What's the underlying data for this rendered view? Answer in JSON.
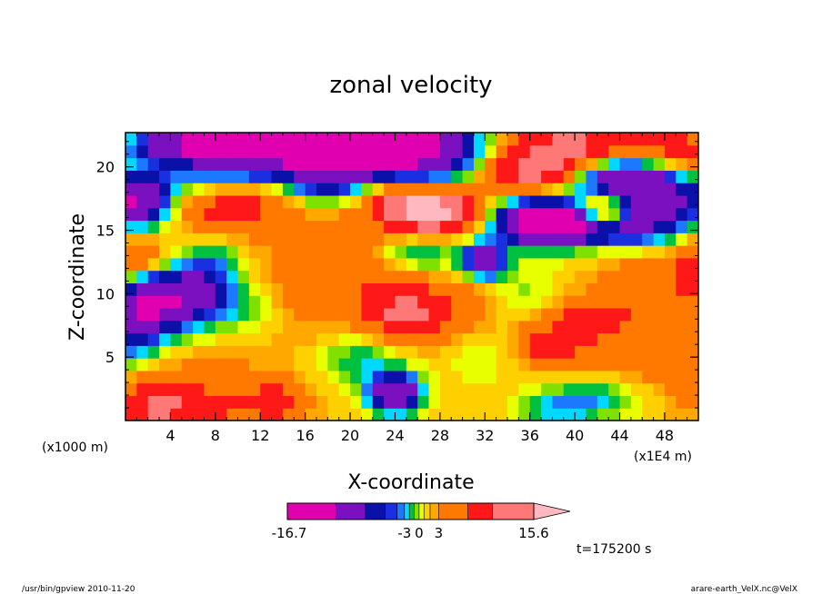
{
  "chart_data": {
    "type": "heatmap",
    "title": "zonal velocity",
    "xlabel": "X-coordinate",
    "ylabel": "Z-coordinate",
    "x_unit_left": "(x1000 m)",
    "x_unit_right": "(x1E4 m)",
    "x_ticks": [
      "4",
      "8",
      "12",
      "16",
      "20",
      "24",
      "28",
      "32",
      "36",
      "40",
      "44",
      "48"
    ],
    "x_tick_values": [
      4,
      8,
      12,
      16,
      20,
      24,
      28,
      32,
      36,
      40,
      44,
      48
    ],
    "xlim": [
      0,
      51
    ],
    "y_ticks": [
      "5",
      "10",
      "15",
      "20"
    ],
    "y_tick_values": [
      5,
      10,
      15,
      20
    ],
    "ylim": [
      0,
      22.7
    ],
    "colorbar": {
      "labels": [
        {
          "text": "-16.7",
          "value": -16.7
        },
        {
          "text": "-3",
          "value": -3
        },
        {
          "text": "0",
          "value": 0
        },
        {
          "text": "3",
          "value": 3
        },
        {
          "text": "15.6",
          "value": 15.6
        }
      ],
      "colors": [
        "#e000b0",
        "#7a10c0",
        "#0a10a8",
        "#1a30e0",
        "#1c78ff",
        "#00d8ff",
        "#00c040",
        "#80e000",
        "#e8ff00",
        "#ffd000",
        "#ffa800",
        "#ff7800",
        "#ff1818",
        "#ff7878",
        "#ffb8c0"
      ],
      "weights": [
        2,
        1.2,
        0.8,
        0.5,
        0.3,
        0.2,
        0.2,
        0.2,
        0.2,
        0.25,
        0.35,
        1.2,
        1,
        1.7,
        1.3
      ]
    },
    "field": {
      "nx": 51,
      "nz": 23,
      "dx": 1,
      "dz": 1,
      "base": 1.5,
      "blobs": [
        {
          "x": 9,
          "z": 22.3,
          "sx": 2.2,
          "sz": 1.0,
          "a": -20
        },
        {
          "x": 4,
          "z": 22.0,
          "sx": 2.5,
          "sz": 0.8,
          "a": -8
        },
        {
          "x": 0.5,
          "z": 17.5,
          "sx": 2.5,
          "sz": 1.5,
          "a": -14
        },
        {
          "x": 14.5,
          "z": 22,
          "sx": 7,
          "sz": 1.6,
          "a": -12
        },
        {
          "x": 8,
          "z": 19.5,
          "sx": 5,
          "sz": 1.2,
          "a": -4
        },
        {
          "x": 23,
          "z": 22,
          "sx": 6.5,
          "sz": 2.0,
          "a": -16
        },
        {
          "x": 17,
          "z": 18.6,
          "sx": 3.2,
          "sz": 1.1,
          "a": -5
        },
        {
          "x": 28,
          "z": 20,
          "sx": 3,
          "sz": 1.5,
          "a": -4
        },
        {
          "x": 34.5,
          "z": 21.2,
          "sx": 3.2,
          "sz": 0.9,
          "a": -4
        },
        {
          "x": 8.5,
          "z": 17,
          "sx": 3.2,
          "sz": 1.6,
          "a": 6
        },
        {
          "x": 13,
          "z": 18.5,
          "sx": 3,
          "sz": 1.2,
          "a": 3
        },
        {
          "x": 25.5,
          "z": 17.5,
          "sx": 3,
          "sz": 1.5,
          "a": 10
        },
        {
          "x": 28,
          "z": 16.5,
          "sx": 2.5,
          "sz": 1.2,
          "a": 8
        },
        {
          "x": 13.5,
          "z": 17.5,
          "sx": 1.5,
          "sz": 1.5,
          "a": 2
        },
        {
          "x": 36,
          "z": 20.3,
          "sx": 4,
          "sz": 1.5,
          "a": 12
        },
        {
          "x": 40,
          "z": 22,
          "sx": 6,
          "sz": 1.2,
          "a": 7
        },
        {
          "x": 38.2,
          "z": 15.6,
          "sx": 3.2,
          "sz": 1.1,
          "a": -16
        },
        {
          "x": 36.5,
          "z": 16.5,
          "sx": 2.5,
          "sz": 1.2,
          "a": -8
        },
        {
          "x": 44,
          "z": 19.5,
          "sx": 3.5,
          "sz": 1.2,
          "a": -12
        },
        {
          "x": 47.5,
          "z": 17.5,
          "sx": 4,
          "sz": 1.3,
          "a": -10
        },
        {
          "x": 45.5,
          "z": 15.2,
          "sx": 3,
          "sz": 0.9,
          "a": -7
        },
        {
          "x": 50,
          "z": 21.5,
          "sx": 3,
          "sz": 1.5,
          "a": 4
        },
        {
          "x": 42.5,
          "z": 16.8,
          "sx": 1.6,
          "sz": 1.0,
          "a": 10
        },
        {
          "x": 32,
          "z": 12.8,
          "sx": 1.3,
          "sz": 1.0,
          "a": -12
        },
        {
          "x": 26,
          "z": 13.5,
          "sx": 3,
          "sz": 1.2,
          "a": -5
        },
        {
          "x": 3.5,
          "z": 9.5,
          "sx": 3,
          "sz": 1.6,
          "a": -12
        },
        {
          "x": 0.5,
          "z": 7.5,
          "sx": 2,
          "sz": 2,
          "a": -8
        },
        {
          "x": 6,
          "z": 11,
          "sx": 3,
          "sz": 2,
          "a": -4
        },
        {
          "x": 8,
          "z": 12.5,
          "sx": 1.5,
          "sz": 1.5,
          "a": -3
        },
        {
          "x": 1,
          "z": 13,
          "sx": 2,
          "sz": 1.5,
          "a": 5
        },
        {
          "x": 20,
          "z": 12,
          "sx": 4.5,
          "sz": 3.2,
          "a": 4
        },
        {
          "x": 25,
          "z": 8.5,
          "sx": 2.5,
          "sz": 1.5,
          "a": 7
        },
        {
          "x": 30,
          "z": 9,
          "sx": 3,
          "sz": 2,
          "a": 3
        },
        {
          "x": 15,
          "z": 10,
          "sx": 3,
          "sz": 2,
          "a": 1.5
        },
        {
          "x": 11,
          "z": 9,
          "sx": 2.5,
          "sz": 1.5,
          "a": -2.5
        },
        {
          "x": 24,
          "z": 2.2,
          "sx": 1.6,
          "sz": 1.1,
          "a": -14
        },
        {
          "x": 21,
          "z": 5,
          "sx": 2.5,
          "sz": 1.5,
          "a": -4
        },
        {
          "x": 3,
          "z": 1,
          "sx": 5,
          "sz": 1.5,
          "a": 8
        },
        {
          "x": 13.5,
          "z": 1.5,
          "sx": 2,
          "sz": 1.2,
          "a": 5
        },
        {
          "x": 8,
          "z": 4,
          "sx": 5,
          "sz": 2,
          "a": 1.5
        },
        {
          "x": 41.5,
          "z": 1.8,
          "sx": 3,
          "sz": 1.2,
          "a": -5
        },
        {
          "x": 38,
          "z": 0.8,
          "sx": 2,
          "sz": 0.8,
          "a": -3
        },
        {
          "x": 43,
          "z": 5,
          "sx": 4,
          "sz": 2.5,
          "a": 2
        },
        {
          "x": 37.5,
          "z": 6,
          "sx": 2,
          "sz": 1.2,
          "a": 6
        },
        {
          "x": 41,
          "z": 8,
          "sx": 2,
          "sz": 1.2,
          "a": 5
        },
        {
          "x": 46,
          "z": 10,
          "sx": 3,
          "sz": 2,
          "a": 4
        },
        {
          "x": 50.5,
          "z": 12,
          "sx": 1.5,
          "sz": 2,
          "a": 5
        },
        {
          "x": 50,
          "z": 3,
          "sx": 2,
          "sz": 2,
          "a": 2
        },
        {
          "x": 32,
          "z": 6,
          "sx": 3,
          "sz": 2,
          "a": -1.5
        },
        {
          "x": 35,
          "z": 10.5,
          "sx": 2.5,
          "sz": 1.5,
          "a": -2
        },
        {
          "x": 47,
          "z": 6,
          "sx": 2,
          "sz": 1.5,
          "a": 2
        }
      ]
    }
  },
  "annotations": {
    "time_label": "t=175200 s",
    "footer_left": "/usr/bin/gpview  2010-11-20",
    "footer_right": "arare-earth_VelX.nc@VelX"
  }
}
